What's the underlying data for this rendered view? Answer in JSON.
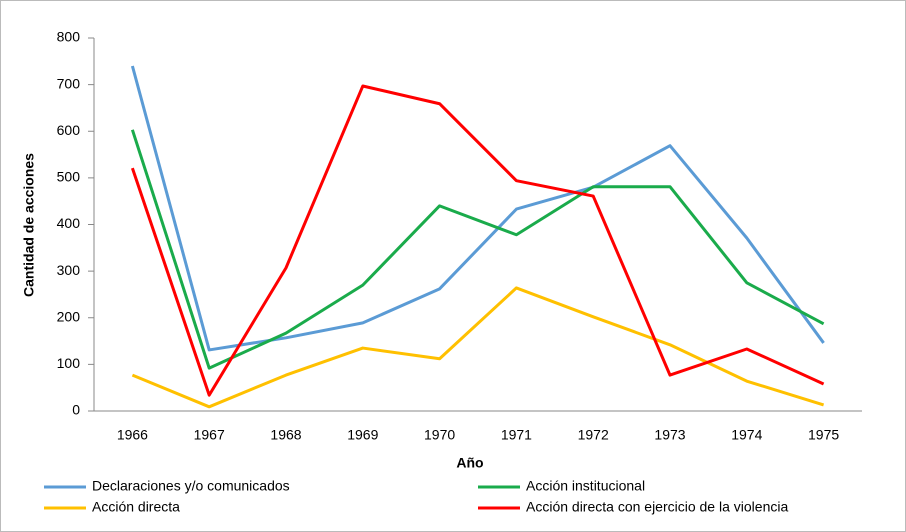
{
  "chart_data": {
    "type": "line",
    "xlabel": "Año",
    "ylabel": "Cantidad de acciones",
    "categories": [
      "1966",
      "1967",
      "1968",
      "1969",
      "1970",
      "1971",
      "1972",
      "1973",
      "1974",
      "1975"
    ],
    "series": [
      {
        "name": "Declaraciones y/o comunicados",
        "color": "#5b9bd5",
        "values": [
          740,
          131,
          157,
          189,
          262,
          433,
          480,
          569,
          371,
          146
        ]
      },
      {
        "name": "Acción institucional",
        "color": "#1aab4b",
        "values": [
          603,
          92,
          167,
          270,
          440,
          378,
          481,
          481,
          275,
          187
        ]
      },
      {
        "name": "Acción directa",
        "color": "#ffc000",
        "values": [
          77,
          9,
          77,
          135,
          112,
          264,
          202,
          142,
          64,
          13
        ]
      },
      {
        "name": "Acción directa con ejercicio de la violencia",
        "color": "#ff0000",
        "values": [
          521,
          34,
          307,
          697,
          659,
          494,
          461,
          77,
          133,
          58
        ]
      }
    ],
    "ylim": [
      0,
      800
    ],
    "yticks": [
      0,
      100,
      200,
      300,
      400,
      500,
      600,
      700,
      800
    ],
    "grid": false,
    "legend": "bottom"
  }
}
